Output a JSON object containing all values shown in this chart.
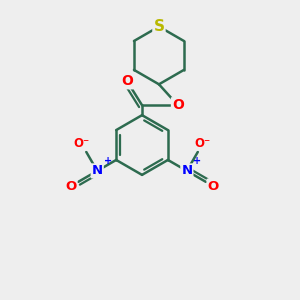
{
  "bg_color": "#eeeeee",
  "bond_color": "#2d6b4f",
  "sulfur_color": "#b8b800",
  "oxygen_color": "#ff0000",
  "nitrogen_color": "#0000ff",
  "line_width": 1.8,
  "xlim": [
    -2.5,
    2.5
  ],
  "ylim": [
    -3.5,
    2.5
  ]
}
